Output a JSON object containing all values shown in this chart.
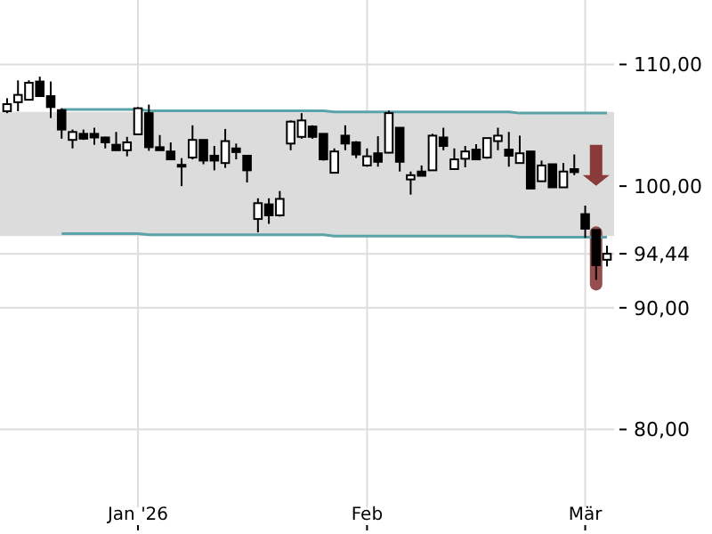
{
  "chart_data": {
    "type": "candlestick",
    "categories": [
      null,
      null,
      null,
      null,
      null,
      null,
      null,
      null,
      null,
      null,
      null,
      null,
      "Jan '26",
      null,
      null,
      null,
      null,
      null,
      null,
      null,
      null,
      null,
      null,
      null,
      null,
      null,
      null,
      null,
      null,
      null,
      null,
      null,
      null,
      "Feb",
      null,
      null,
      null,
      null,
      null,
      null,
      null,
      null,
      null,
      null,
      null,
      null,
      null,
      null,
      null,
      null,
      null,
      null,
      null,
      "Mär",
      null,
      null
    ],
    "ohlc": [
      [
        106.16,
        107.23,
        106.0,
        106.74
      ],
      [
        106.9,
        108.69,
        106.16,
        107.5
      ],
      [
        107.1,
        108.7,
        107.1,
        108.5
      ],
      [
        108.6,
        109.0,
        107.4,
        107.4
      ],
      [
        107.4,
        108.6,
        105.6,
        106.5
      ],
      [
        106.25,
        106.4,
        103.9,
        104.65
      ],
      [
        103.8,
        104.65,
        103.1,
        104.45
      ],
      [
        104.3,
        104.65,
        103.8,
        103.9
      ],
      [
        104.3,
        104.8,
        103.4,
        104.0
      ],
      [
        104.0,
        104.05,
        103.1,
        103.6
      ],
      [
        103.4,
        104.45,
        102.95,
        102.95
      ],
      [
        102.95,
        104.05,
        102.45,
        103.6
      ],
      [
        104.26,
        106.5,
        104.2,
        106.4
      ],
      [
        106.0,
        106.7,
        102.9,
        103.2
      ],
      [
        103.2,
        104.2,
        102.95,
        102.95
      ],
      [
        102.85,
        103.6,
        102.2,
        102.2
      ],
      [
        101.75,
        102.3,
        100.0,
        101.65
      ],
      [
        102.35,
        105.0,
        102.2,
        103.8
      ],
      [
        103.8,
        103.8,
        101.8,
        102.1
      ],
      [
        102.5,
        103.3,
        101.3,
        102.1
      ],
      [
        101.9,
        104.7,
        101.5,
        103.7
      ],
      [
        103.1,
        103.5,
        102.2,
        102.8
      ],
      [
        102.5,
        102.5,
        100.3,
        101.3
      ],
      [
        97.3,
        99.0,
        96.2,
        98.6
      ],
      [
        98.5,
        99.0,
        96.9,
        97.6
      ],
      [
        97.6,
        99.6,
        97.5,
        98.95
      ],
      [
        103.5,
        105.4,
        102.95,
        105.3
      ],
      [
        104.05,
        106.0,
        103.9,
        105.4
      ],
      [
        104.9,
        105.0,
        103.9,
        104.05
      ],
      [
        104.3,
        104.3,
        102.1,
        102.2
      ],
      [
        101.1,
        103.1,
        101.1,
        102.85
      ],
      [
        104.15,
        105.0,
        102.95,
        103.5
      ],
      [
        103.6,
        103.7,
        102.3,
        102.6
      ],
      [
        101.7,
        103.1,
        101.6,
        102.45
      ],
      [
        102.7,
        104.1,
        101.6,
        102.0
      ],
      [
        102.75,
        106.2,
        102.7,
        106.0
      ],
      [
        104.8,
        104.8,
        101.2,
        102.0
      ],
      [
        100.55,
        101.2,
        99.3,
        100.9
      ],
      [
        101.2,
        101.7,
        100.85,
        100.85
      ],
      [
        101.3,
        104.3,
        101.3,
        104.15
      ],
      [
        104.0,
        104.8,
        102.95,
        103.3
      ],
      [
        101.4,
        103.1,
        101.4,
        102.2
      ],
      [
        102.25,
        103.3,
        101.55,
        102.85
      ],
      [
        103.0,
        103.45,
        102.2,
        102.2
      ],
      [
        102.35,
        103.95,
        102.25,
        103.95
      ],
      [
        103.7,
        104.8,
        102.95,
        104.15
      ],
      [
        103.0,
        104.45,
        101.6,
        102.5
      ],
      [
        101.9,
        104.15,
        101.9,
        102.7
      ],
      [
        102.85,
        102.85,
        99.8,
        99.8
      ],
      [
        100.4,
        102.1,
        100.4,
        101.7
      ],
      [
        101.8,
        101.8,
        99.9,
        99.9
      ],
      [
        99.9,
        101.9,
        99.9,
        101.2
      ],
      [
        101.4,
        102.6,
        100.9,
        101.15
      ],
      [
        97.7,
        98.4,
        95.75,
        96.5
      ],
      [
        96.4,
        96.4,
        92.3,
        93.5
      ],
      [
        93.95,
        95.1,
        93.4,
        94.44
      ]
    ],
    "series": [
      {
        "type": "line",
        "color": "#5aa3a8",
        "values": [
          null,
          null,
          null,
          null,
          null,
          106.3,
          106.3,
          106.3,
          106.3,
          106.3,
          106.3,
          106.3,
          106.3,
          106.2,
          106.2,
          106.2,
          106.2,
          106.2,
          106.2,
          106.2,
          106.2,
          106.2,
          106.2,
          106.2,
          106.2,
          106.2,
          106.2,
          106.2,
          106.2,
          106.2,
          106.1,
          106.1,
          106.1,
          106.1,
          106.1,
          106.1,
          106.1,
          106.1,
          106.1,
          106.1,
          106.1,
          106.1,
          106.1,
          106.1,
          106.1,
          106.1,
          106.1,
          106.0,
          106.0,
          106.0,
          106.0,
          106.0,
          106.0,
          106.0,
          106.0,
          106.0
        ]
      },
      {
        "type": "line",
        "color": "#5aa3a8",
        "values": [
          null,
          null,
          null,
          null,
          null,
          96.1,
          96.1,
          96.1,
          96.1,
          96.1,
          96.1,
          96.1,
          96.1,
          96.0,
          96.0,
          96.0,
          96.0,
          96.0,
          96.0,
          96.0,
          96.0,
          96.0,
          96.0,
          96.0,
          96.0,
          96.0,
          96.0,
          96.0,
          96.0,
          96.0,
          95.9,
          95.9,
          95.9,
          95.9,
          95.9,
          95.9,
          95.9,
          95.9,
          95.9,
          95.9,
          95.9,
          95.9,
          95.9,
          95.9,
          95.9,
          95.9,
          95.9,
          95.8,
          95.8,
          95.8,
          95.8,
          95.8,
          95.8,
          95.8,
          95.8,
          95.8
        ]
      }
    ],
    "bands": [
      {
        "axis": "y",
        "from": 95.9,
        "to": 106.1,
        "color": "#dcdcdc"
      }
    ],
    "ylim": [
      73.6,
      115.3
    ],
    "yticks": [
      {
        "value": 80,
        "label": "80,00"
      },
      {
        "value": 90,
        "label": "90,00"
      },
      {
        "value": 94.44,
        "label": "94,44"
      },
      {
        "value": 100,
        "label": "100,00"
      },
      {
        "value": 110,
        "label": "110,00"
      }
    ],
    "grid": true
  }
}
